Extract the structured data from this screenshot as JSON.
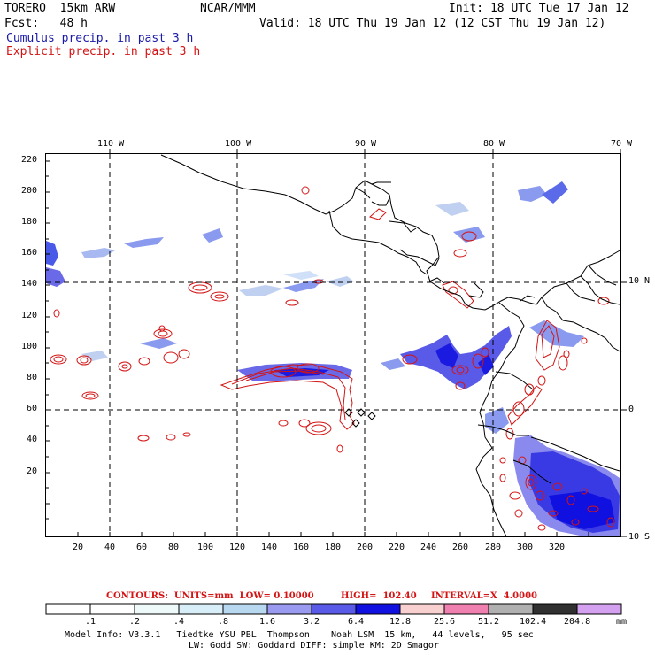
{
  "header": {
    "model_name": "TORERO  15km ARW",
    "center": "NCAR/MMM",
    "init": "Init: 18 UTC Tue 17 Jan 12",
    "fcst": "Fcst:   48 h",
    "valid": "Valid: 18 UTC Thu 19 Jan 12 (12 CST Thu 19 Jan 12)"
  },
  "legend": {
    "cumulus": "Cumulus precip. in past 3 h",
    "explicit": "Explicit precip. in past 3 h"
  },
  "map": {
    "top_labels": [
      "110 W",
      "100 W",
      "90 W",
      "80 W",
      "70 W"
    ],
    "right_labels": [
      "10 N",
      "0",
      "10 S"
    ],
    "y_ticks": [
      "220",
      "200",
      "180",
      "160",
      "140",
      "120",
      "100",
      "80",
      "60",
      "40",
      "20"
    ],
    "x_ticks": [
      "20",
      "40",
      "60",
      "80",
      "100",
      "120",
      "140",
      "160",
      "180",
      "200",
      "220",
      "240",
      "260",
      "280",
      "300",
      "320"
    ]
  },
  "contour_info": {
    "units": "CONTOURS:  UNITS=mm  LOW= 0.10000",
    "high": "HIGH=  102.40",
    "interval": "INTERVAL=X  4.0000"
  },
  "colorbar": {
    "labels": [
      ".1",
      ".2",
      ".4",
      ".8",
      "1.6",
      "3.2",
      "6.4",
      "12.8",
      "25.6",
      "51.2",
      "102.4",
      "204.8"
    ],
    "unit": "mm",
    "colors": [
      "#ffffff",
      "#ffffff",
      "#eefafa",
      "#d8eef8",
      "#b8d8f0",
      "#9a9af0",
      "#5a5ae8",
      "#1010e0",
      "#f8d0d0",
      "#f080b0",
      "#b0b0b0",
      "#303030",
      "#d4a0f0"
    ]
  },
  "model_info": {
    "line1": "Model Info: V3.3.1   Tiedtke YSU PBL  Thompson    Noah LSM  15 km,   44 levels,   95 sec",
    "line2": "LW: Godd SW: Goddard DIFF: simple KM: 2D Smagor"
  }
}
